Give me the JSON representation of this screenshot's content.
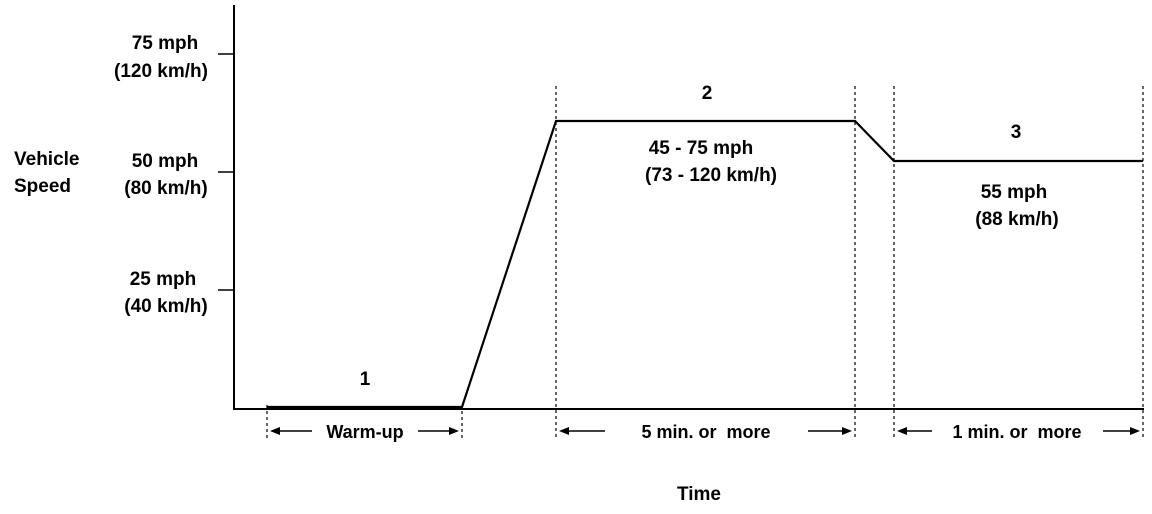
{
  "y_axis": {
    "title_lines": [
      "Vehicle",
      "Speed"
    ],
    "ticks": [
      {
        "mph": "75 mph",
        "kmh": "(120 km/h)"
      },
      {
        "mph": "50 mph",
        "kmh": "(80 km/h)"
      },
      {
        "mph": "25 mph",
        "kmh": "(40 km/h)"
      }
    ]
  },
  "x_axis": {
    "title": "Time"
  },
  "phases": [
    {
      "number": "1",
      "duration": "Warm-up"
    },
    {
      "number": "2",
      "speed_mph": "45 - 75 mph",
      "speed_kmh": "(73 - 120 km/h)",
      "duration": "5 min. or  more"
    },
    {
      "number": "3",
      "speed_mph": "55 mph",
      "speed_kmh": "(88 km/h)",
      "duration": "1 min. or  more"
    }
  ],
  "colors": {
    "line": "#000000",
    "background": "#ffffff"
  }
}
